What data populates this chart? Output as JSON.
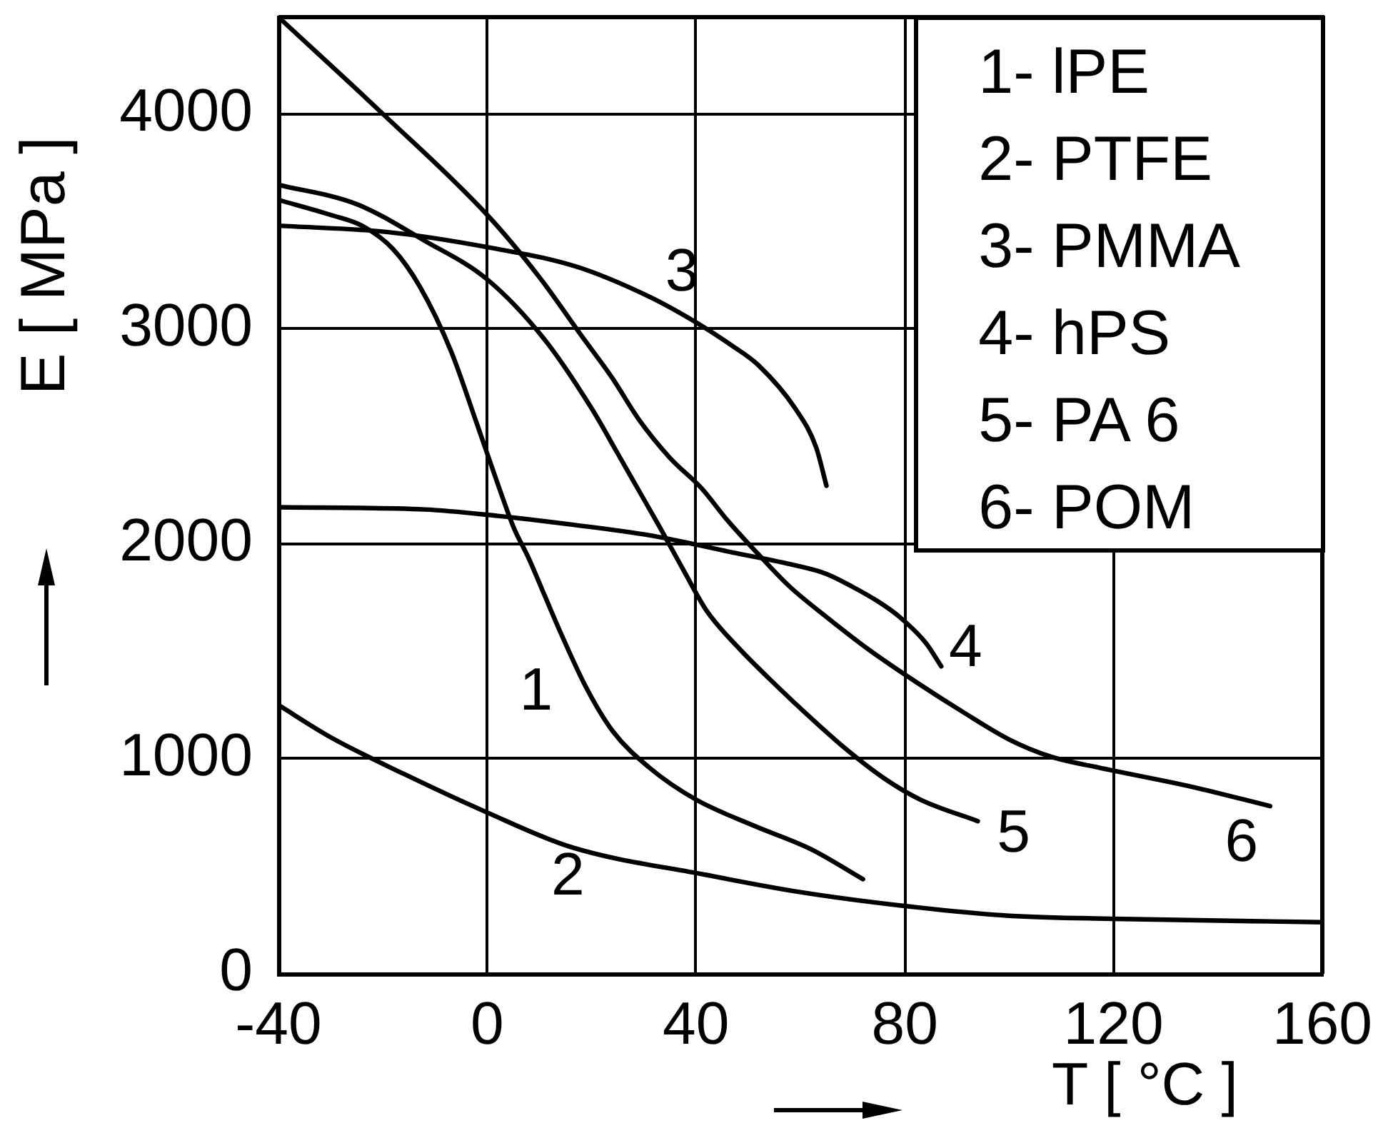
{
  "chart_data": {
    "type": "line",
    "xlabel": "T [ °C ]",
    "ylabel": "E [ MPa ]",
    "xlim": [
      -40,
      160
    ],
    "xticks": [
      -40,
      0,
      40,
      80,
      120,
      160
    ],
    "ylim": [
      0,
      4450
    ],
    "yticks": [
      0,
      1000,
      2000,
      3000,
      4000
    ],
    "grid": true,
    "series": [
      {
        "name": "1",
        "color": "#000000",
        "x": [
          -40,
          -30,
          -24,
          -18,
          -13,
          -7,
          -2,
          2,
          5,
          8,
          11,
          14,
          19,
          24,
          31,
          40,
          51,
          62,
          72
        ],
        "values": [
          3600,
          3530,
          3480,
          3370,
          3200,
          2900,
          2560,
          2280,
          2080,
          1930,
          1760,
          1590,
          1330,
          1130,
          960,
          810,
          690,
          580,
          440
        ]
      },
      {
        "name": "2",
        "color": "#000000",
        "x": [
          -40,
          -30,
          -16,
          0,
          16,
          42,
          60,
          82,
          100,
          122,
          160
        ],
        "values": [
          1250,
          1100,
          930,
          750,
          590,
          460,
          380,
          310,
          270,
          255,
          240
        ]
      },
      {
        "name": "3",
        "color": "#000000",
        "x": [
          -40,
          -19,
          0,
          17,
          31,
          40,
          47,
          52,
          59,
          63,
          65
        ],
        "values": [
          3480,
          3450,
          3380,
          3290,
          3150,
          3030,
          2920,
          2830,
          2630,
          2450,
          2270
        ]
      },
      {
        "name": "4",
        "color": "#000000",
        "x": [
          -40,
          -12,
          2,
          16,
          31,
          47,
          59,
          65,
          70,
          75,
          79,
          84,
          87
        ],
        "values": [
          2170,
          2160,
          2130,
          2090,
          2040,
          1960,
          1900,
          1860,
          1800,
          1730,
          1660,
          1540,
          1430
        ]
      },
      {
        "name": "5",
        "color": "#000000",
        "x": [
          -40,
          -25,
          -12,
          0,
          11,
          20,
          25,
          29,
          33,
          38,
          42,
          48,
          55,
          62,
          69,
          76,
          83,
          94
        ],
        "values": [
          3670,
          3580,
          3410,
          3230,
          2950,
          2630,
          2420,
          2250,
          2080,
          1860,
          1690,
          1520,
          1350,
          1190,
          1040,
          910,
          810,
          710
        ]
      },
      {
        "name": "6",
        "color": "#000000",
        "x": [
          -40,
          -20,
          0,
          10,
          18,
          24,
          29,
          35,
          41,
          46,
          52,
          58,
          65,
          73,
          82,
          91,
          100,
          108,
          117,
          135,
          150
        ],
        "values": [
          4450,
          4000,
          3530,
          3240,
          2970,
          2770,
          2580,
          2400,
          2260,
          2110,
          1950,
          1800,
          1660,
          1510,
          1360,
          1220,
          1090,
          1010,
          960,
          870,
          780
        ]
      }
    ],
    "annotations": [
      "1- lPE",
      "2- PTFE",
      "3- PMMA",
      "4- hPS",
      "5- PA 6",
      "6- POM"
    ]
  }
}
